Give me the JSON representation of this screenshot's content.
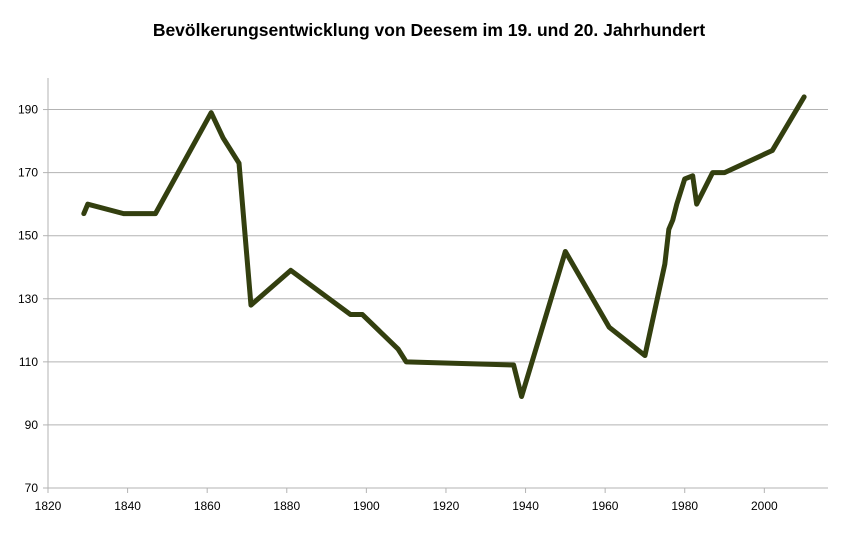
{
  "chart_data": {
    "type": "line",
    "title": "Bevölkerungsentwicklung von Deesem im 19. und 20. Jahrhundert",
    "xlabel": "",
    "ylabel": "",
    "xlim": [
      1820,
      2016
    ],
    "ylim": [
      70,
      200
    ],
    "x_ticks": [
      1820,
      1840,
      1860,
      1880,
      1900,
      1920,
      1940,
      1960,
      1980,
      2000
    ],
    "y_ticks": [
      70,
      90,
      110,
      130,
      150,
      170,
      190
    ],
    "grid": "horizontal",
    "legend": "none",
    "series": [
      {
        "color": "#333f0f",
        "points": [
          [
            1829,
            157
          ],
          [
            1830,
            160
          ],
          [
            1839,
            157
          ],
          [
            1847,
            157
          ],
          [
            1861,
            189
          ],
          [
            1864,
            181
          ],
          [
            1868,
            173
          ],
          [
            1871,
            128
          ],
          [
            1881,
            139
          ],
          [
            1896,
            125
          ],
          [
            1899,
            125
          ],
          [
            1908,
            114
          ],
          [
            1910,
            110
          ],
          [
            1937,
            109
          ],
          [
            1939,
            99
          ],
          [
            1950,
            145
          ],
          [
            1961,
            121
          ],
          [
            1970,
            112
          ],
          [
            1975,
            141
          ],
          [
            1976,
            152
          ],
          [
            1977,
            155
          ],
          [
            1978,
            160
          ],
          [
            1980,
            168
          ],
          [
            1982,
            169
          ],
          [
            1983,
            160
          ],
          [
            1987,
            170
          ],
          [
            1990,
            170
          ],
          [
            2002,
            177
          ],
          [
            2010,
            194
          ]
        ]
      }
    ]
  }
}
